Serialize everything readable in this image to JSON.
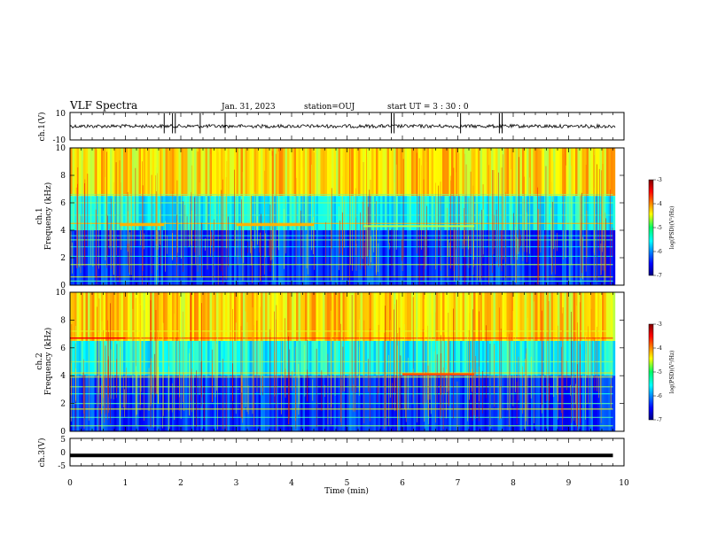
{
  "header": {
    "title": "VLF Spectra",
    "date": "Jan. 31, 2023",
    "station": "station=OUJ",
    "start": "start  UT =  3 : 30 : 0"
  },
  "colors": {
    "spectrogram_low": "#00007f",
    "spectrogram_high": "#ff0000",
    "waveform": "#000000"
  },
  "chart_data": [
    {
      "type": "line",
      "id": "ch1-waveform",
      "ylabel": "ch.1(V)",
      "ylim": [
        -10,
        10
      ],
      "yticks": [
        "10",
        "-10"
      ],
      "xlim": [
        0,
        10
      ],
      "baseline": 0,
      "spikes_min": [
        1.7,
        1.85,
        1.9,
        2.35,
        2.8,
        5.8,
        5.85,
        7.05,
        7.75,
        7.8
      ]
    },
    {
      "type": "heatmap",
      "id": "ch1-spectrogram",
      "ylabel": "ch.1\nFrequency (kHz)",
      "ylabel_line1": "ch.1",
      "ylabel_line2": "Frequency (kHz)",
      "ylim": [
        0,
        10
      ],
      "yticks": [
        "0",
        "2",
        "4",
        "6",
        "8",
        "10"
      ],
      "xlim": [
        0,
        10
      ],
      "data_end_min": 9.8,
      "colorbar": {
        "label": "log(PSD)(V²/Hz)",
        "range": [
          -7,
          -3
        ],
        "ticks": [
          "-3",
          "-4",
          "-5",
          "-6",
          "-7"
        ]
      }
    },
    {
      "type": "heatmap",
      "id": "ch2-spectrogram",
      "ylabel": "ch.2\nFrequency (kHz)",
      "ylabel_line1": "ch.2",
      "ylabel_line2": "Frequency (kHz)",
      "ylim": [
        0,
        10
      ],
      "yticks": [
        "0",
        "2",
        "4",
        "6",
        "8",
        "10"
      ],
      "xlim": [
        0,
        10
      ],
      "data_end_min": 9.8,
      "colorbar": {
        "label": "log(PSD)(V²/Hz)",
        "range": [
          -7,
          -3
        ],
        "ticks": [
          "-3",
          "-4",
          "-5",
          "-6",
          "-7"
        ]
      }
    },
    {
      "type": "line",
      "id": "ch3-waveform",
      "ylabel": "ch.3(V)",
      "ylim": [
        -5,
        5
      ],
      "yticks": [
        "5",
        "0",
        "-5"
      ],
      "xlim": [
        0,
        10
      ],
      "baseline": -1.2
    }
  ],
  "xaxis": {
    "label": "Time (min)",
    "ticks": [
      "0",
      "1",
      "2",
      "3",
      "4",
      "5",
      "6",
      "7",
      "8",
      "9",
      "10"
    ]
  }
}
